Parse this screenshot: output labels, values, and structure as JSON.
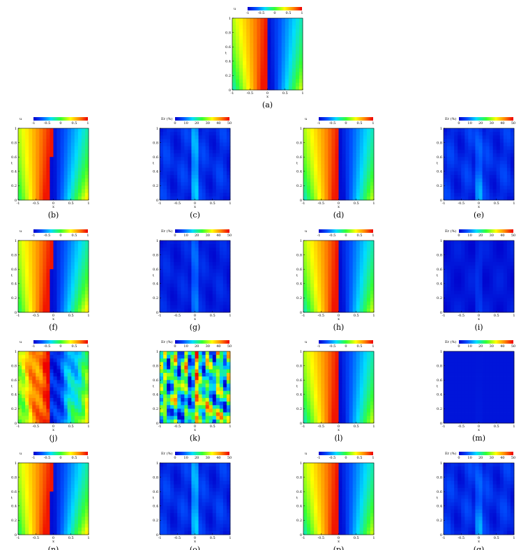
{
  "figure": {
    "panels": [
      {
        "caption": "(a)",
        "kind": "u",
        "variant": "exact"
      },
      {
        "caption": "(b)",
        "kind": "u",
        "variant": "num_a"
      },
      {
        "caption": "(c)",
        "kind": "err",
        "variant": "err_a"
      },
      {
        "caption": "(d)",
        "kind": "u",
        "variant": "num_b"
      },
      {
        "caption": "(e)",
        "kind": "err",
        "variant": "err_b"
      },
      {
        "caption": "(f)",
        "kind": "u",
        "variant": "num_a"
      },
      {
        "caption": "(g)",
        "kind": "err",
        "variant": "err_c"
      },
      {
        "caption": "(h)",
        "kind": "u",
        "variant": "exact"
      },
      {
        "caption": "(i)",
        "kind": "err",
        "variant": "err_low"
      },
      {
        "caption": "(j)",
        "kind": "u",
        "variant": "num_bad"
      },
      {
        "caption": "(k)",
        "kind": "err",
        "variant": "err_high"
      },
      {
        "caption": "(l)",
        "kind": "u",
        "variant": "exact"
      },
      {
        "caption": "(m)",
        "kind": "err",
        "variant": "err_vlow"
      },
      {
        "caption": "(n)",
        "kind": "u",
        "variant": "num_a"
      },
      {
        "caption": "(o)",
        "kind": "err",
        "variant": "err_a"
      },
      {
        "caption": "(p)",
        "kind": "u",
        "variant": "exact"
      },
      {
        "caption": "(q)",
        "kind": "err",
        "variant": "err_b"
      }
    ]
  },
  "chart_data": {
    "type": "heatmap",
    "xlabel": "x",
    "ylabel": "t",
    "xlim": [
      -1,
      1
    ],
    "ylim": [
      0,
      1
    ],
    "x_ticks": [
      "-1",
      "-0.5",
      "0",
      "0.5",
      "1"
    ],
    "y_ticks": [
      "0",
      "0.2",
      "0.4",
      "0.6",
      "0.8",
      "1"
    ],
    "solution_colorbar": {
      "title": "u",
      "range": [
        -1,
        1
      ],
      "ticks": [
        "-1",
        "-0.5",
        "0",
        "0.5",
        "1"
      ],
      "colormap": "jet"
    },
    "error_colorbar": {
      "title": "Er (%)",
      "range": [
        0,
        50
      ],
      "ticks": [
        "0",
        "10",
        "20",
        "30",
        "40",
        "50"
      ],
      "colormap": "jet"
    },
    "colors": {
      "dark_blue": "#0000cc",
      "blue": "#0050ff",
      "cyan": "#00ddff",
      "green": "#33ff33",
      "yellow": "#ffff00",
      "orange": "#ff8800",
      "red": "#ee0000"
    }
  }
}
